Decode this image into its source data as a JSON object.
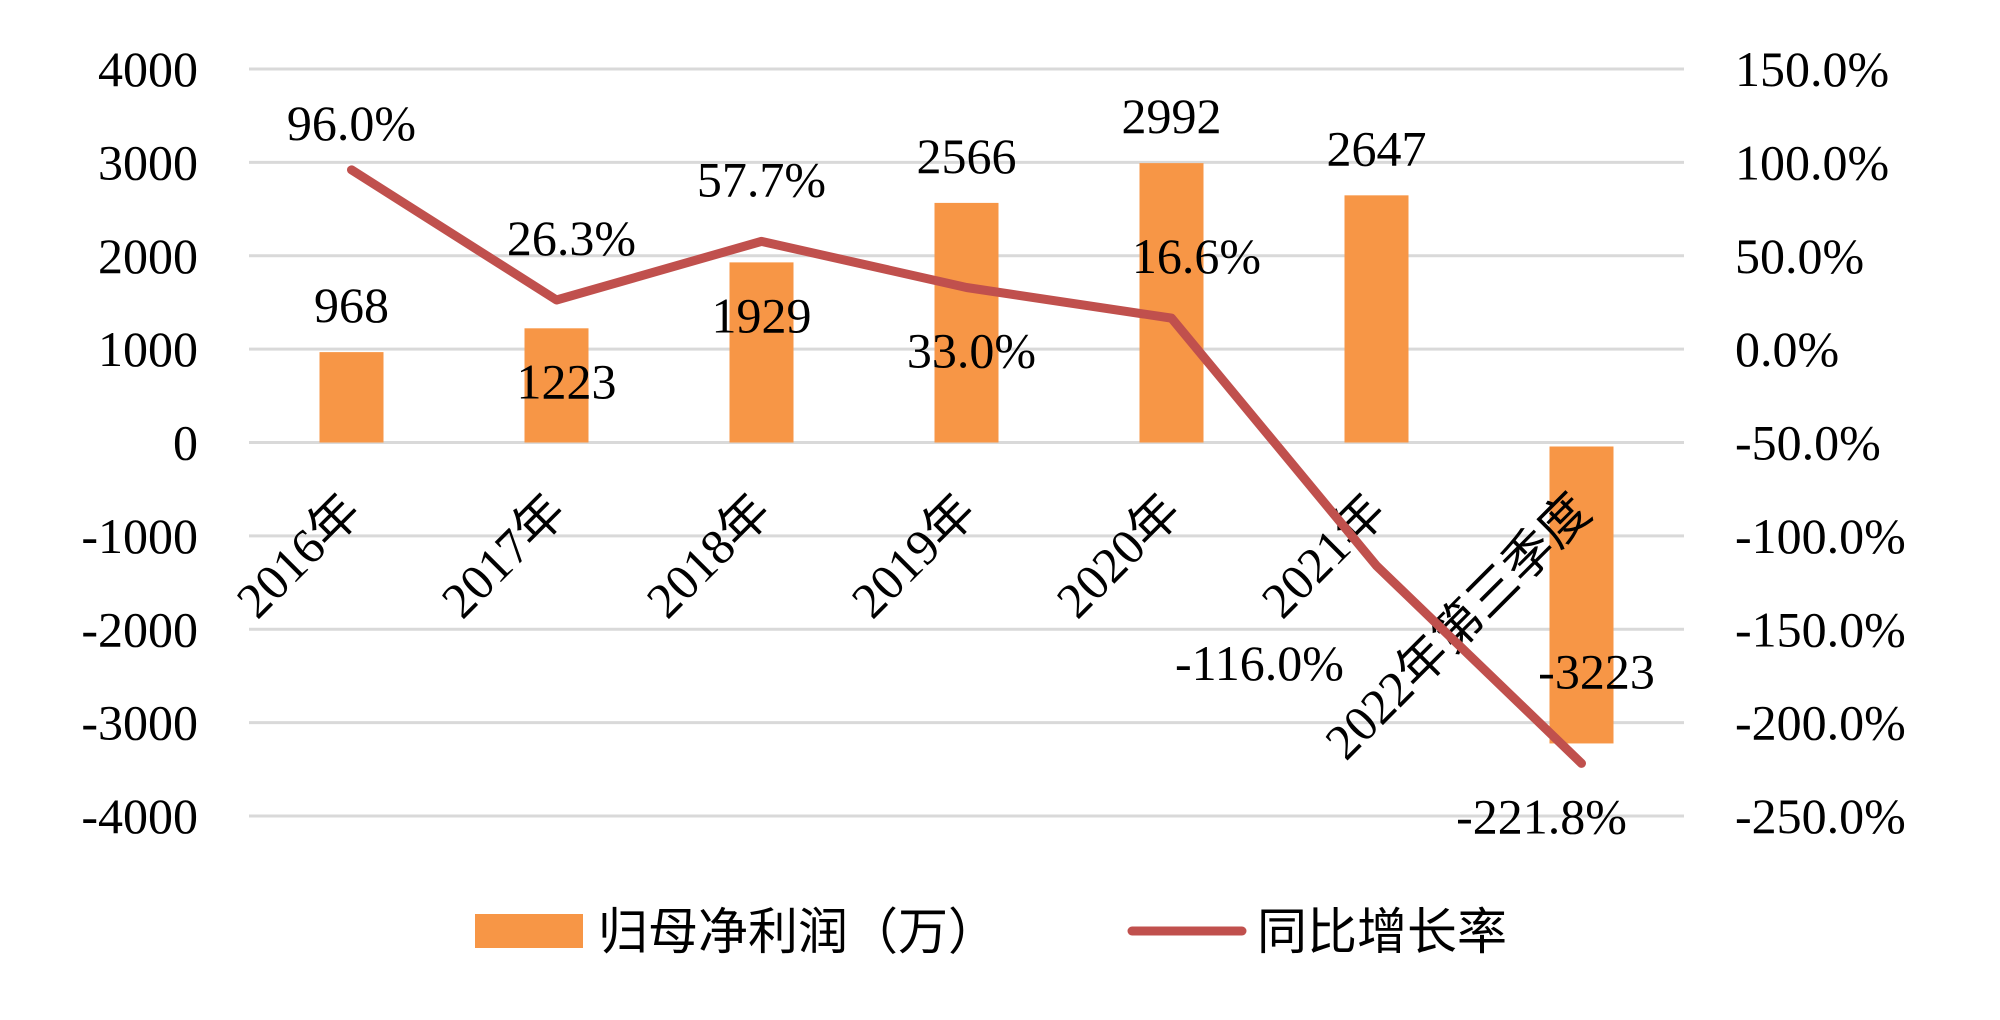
{
  "chart_data": {
    "type": "bar+line",
    "categories": [
      "2016年",
      "2017年",
      "2018年",
      "2019年",
      "2020年",
      "2021年",
      "2022年第三季度"
    ],
    "series": [
      {
        "name": "归母净利润（万）",
        "type": "bar",
        "axis": "left",
        "color": "#F79646",
        "values": [
          968,
          1223,
          1929,
          2566,
          2992,
          2647,
          -3223
        ],
        "labels": [
          "968",
          "1223",
          "1929",
          "2566",
          "2992",
          "2647",
          "-3223"
        ]
      },
      {
        "name": "同比增长率",
        "type": "line",
        "axis": "right",
        "color": "#C0504D",
        "values": [
          96.0,
          26.3,
          57.7,
          33.0,
          16.6,
          -116.0,
          -221.8
        ],
        "labels": [
          "96.0%",
          "26.3%",
          "57.7%",
          "33.0%",
          "16.6%",
          "-116.0%",
          "-221.8%"
        ]
      }
    ],
    "y_left": {
      "range": [
        -4000,
        4000
      ],
      "ticks": [
        "4000",
        "3000",
        "2000",
        "1000",
        "0",
        "-1000",
        "-2000",
        "-3000",
        "-4000"
      ]
    },
    "y_right": {
      "range": [
        -250,
        150
      ],
      "ticks": [
        "150.0%",
        "100.0%",
        "50.0%",
        "0.0%",
        "-50.0%",
        "-100.0%",
        "-150.0%",
        "-200.0%",
        "-250.0%"
      ]
    },
    "grid": true,
    "grid_color": "#D9D9D9",
    "legend_placement": "bottom"
  }
}
